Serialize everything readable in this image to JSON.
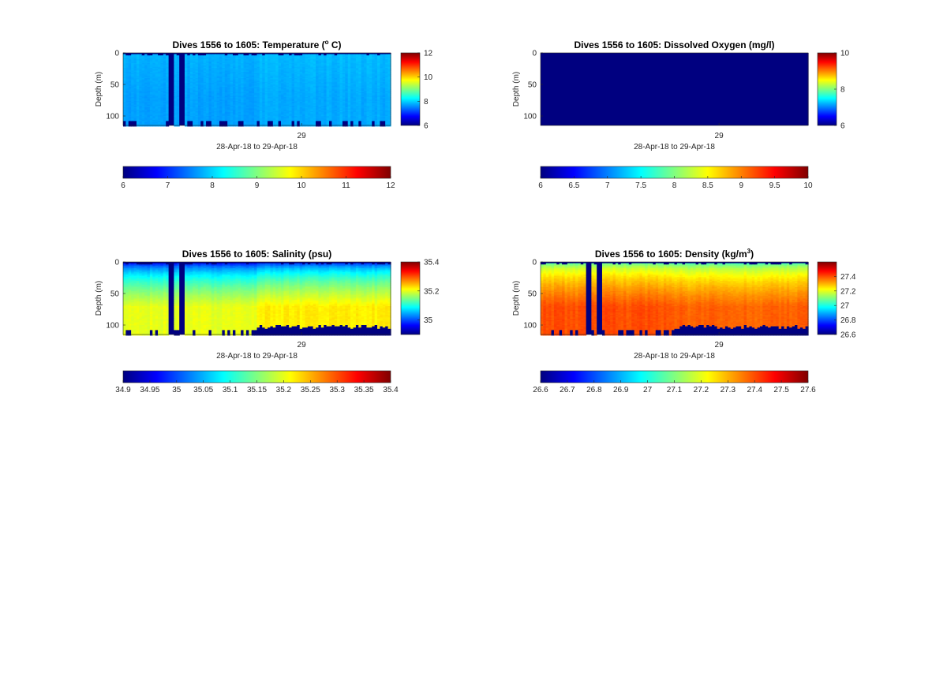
{
  "figure": {
    "background": "#ffffff"
  },
  "chart_data": [
    {
      "type": "heatmap",
      "title": "Dives 1556 to 1605: Temperature (° C)",
      "title_parts": {
        "pre": "Dives 1556 to 1605: Temperature (",
        "sup": "o",
        "post": " C)"
      },
      "ylabel": "Depth (m)",
      "xlabel": "28-Apr-18 to 29-Apr-18",
      "xtick_labels": [
        "29"
      ],
      "ylim": [
        0,
        115
      ],
      "yticks": [
        0,
        50,
        100
      ],
      "clim": [
        6,
        12
      ],
      "colormap": "jet",
      "profiles": 100,
      "field": {
        "surface": 7.8,
        "deep": 7.7,
        "gradient_power": 1.0,
        "late_shift": 0.05,
        "late_start_fraction": 0.5,
        "noise": 0.12,
        "surface_cap_max_depth": 3,
        "bottom_max_depth": 111
      },
      "gap_profiles": [
        17,
        18,
        21,
        22
      ],
      "side_colorbar": {
        "ticks": [
          6,
          8,
          10,
          12
        ]
      },
      "bottom_colorbar": {
        "ticks": [
          6,
          7,
          8,
          9,
          10,
          11,
          12
        ]
      }
    },
    {
      "type": "heatmap",
      "title": "Dives 1556 to 1605: Dissolved Oxygen (mg/l)",
      "ylabel": "Depth (m)",
      "xlabel": "28-Apr-18 to 29-Apr-18",
      "xtick_labels": [
        "29"
      ],
      "ylim": [
        0,
        115
      ],
      "yticks": [
        0,
        50,
        100
      ],
      "clim": [
        6,
        10
      ],
      "colormap": "jet",
      "profiles": 100,
      "field": {
        "uniform": 6.0
      },
      "side_colorbar": {
        "ticks": [
          6,
          8,
          10
        ]
      },
      "bottom_colorbar": {
        "ticks": [
          6,
          6.5,
          7,
          7.5,
          8,
          8.5,
          9,
          9.5,
          10
        ]
      }
    },
    {
      "type": "heatmap",
      "title": "Dives 1556 to 1605: Salinity (psu)",
      "ylabel": "Depth (m)",
      "xlabel": "28-Apr-18 to 29-Apr-18",
      "xtick_labels": [
        "29"
      ],
      "ylim": [
        0,
        115
      ],
      "yticks": [
        0,
        50,
        100
      ],
      "clim": [
        34.9,
        35.4
      ],
      "colormap": "jet",
      "profiles": 100,
      "field": {
        "surface": 34.92,
        "deep": 35.2,
        "gradient_power": 0.45,
        "late_shift": 0.02,
        "late_start_fraction": 0.5,
        "noise": 0.015,
        "surface_cap_max_depth": 3,
        "bottom_max_depth": 111,
        "bottom_start_fraction": 0.5,
        "bottom_min_depth": 100
      },
      "gap_profiles": [
        17,
        18,
        21,
        22
      ],
      "side_colorbar": {
        "ticks": [
          35,
          35.2,
          35.4
        ]
      },
      "bottom_colorbar": {
        "ticks": [
          34.9,
          34.95,
          35,
          35.05,
          35.1,
          35.15,
          35.2,
          35.25,
          35.3,
          35.35,
          35.4
        ]
      }
    },
    {
      "type": "heatmap",
      "title": "Dives 1556 to 1605: Density (kg/m³)",
      "title_parts": {
        "pre": "Dives 1556 to 1605: Density (kg/m",
        "sup": "3",
        "post": ")"
      },
      "ylabel": "Depth (m)",
      "xlabel": "28-Apr-18 to 29-Apr-18",
      "xtick_labels": [
        "29"
      ],
      "ylim": [
        0,
        115
      ],
      "yticks": [
        0,
        50,
        100
      ],
      "clim": [
        26.6,
        27.6
      ],
      "colormap": "jet",
      "profiles": 100,
      "field": {
        "surface": 26.95,
        "deep": 27.4,
        "gradient_power": 0.35,
        "late_shift": -0.02,
        "late_start_fraction": 0.5,
        "noise": 0.03,
        "surface_cap_max_depth": 3,
        "bottom_max_depth": 111,
        "bottom_start_fraction": 0.5,
        "bottom_min_depth": 100
      },
      "gap_profiles": [
        17,
        18,
        21,
        22
      ],
      "side_colorbar": {
        "ticks": [
          26.6,
          26.8,
          27,
          27.2,
          27.4
        ]
      },
      "bottom_colorbar": {
        "ticks": [
          26.6,
          26.7,
          26.8,
          26.9,
          27,
          27.1,
          27.2,
          27.3,
          27.4,
          27.5,
          27.6
        ]
      }
    }
  ]
}
